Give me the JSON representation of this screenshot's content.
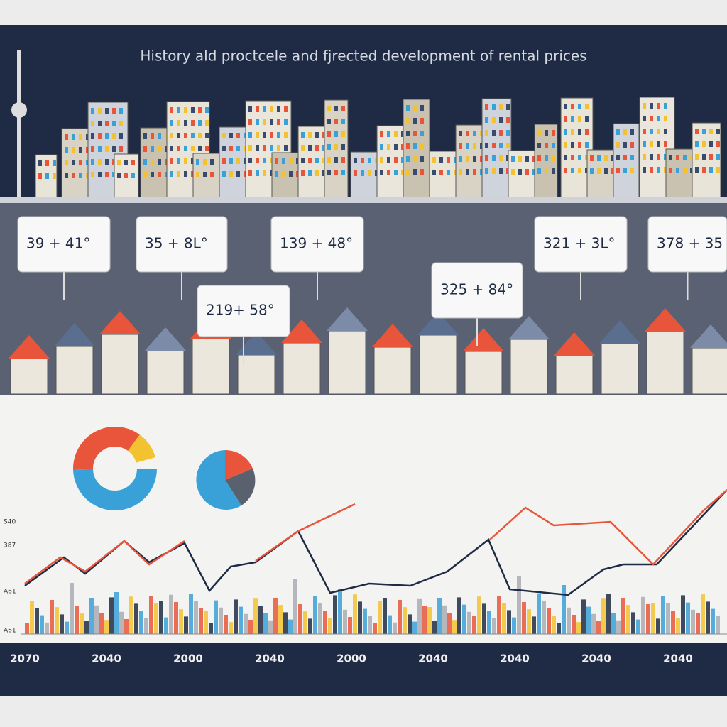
{
  "header": {
    "title": "History ald proctcele and fjrected development of rental prices"
  },
  "callouts": [
    "39 + 41°",
    "35 + 8L°",
    "139 + 48°",
    "219+ 58°",
    "325 + 84°",
    "321 + 3L°",
    "378 + 35"
  ],
  "axis_labels": [
    "S40",
    "387",
    "A61",
    "A61"
  ],
  "years": [
    "2070",
    "2040",
    "2000",
    "2040",
    "2000",
    "2040",
    "2040",
    "2040",
    "2040"
  ]
}
